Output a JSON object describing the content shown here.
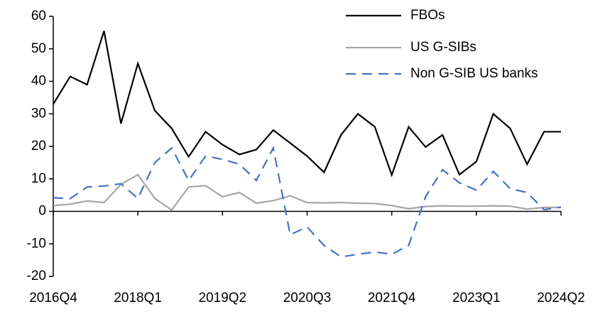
{
  "chart_data": {
    "type": "line",
    "categories": [
      "2016Q4",
      null,
      null,
      null,
      null,
      "2018Q1",
      null,
      null,
      null,
      null,
      "2019Q2",
      null,
      null,
      null,
      null,
      "2020Q3",
      null,
      null,
      null,
      null,
      "2021Q4",
      null,
      null,
      null,
      null,
      "2023Q1",
      null,
      null,
      null,
      null,
      "2024Q2"
    ],
    "series": [
      {
        "name": "FBOs",
        "color": "#000000",
        "dash": false,
        "values": [
          33,
          41.5,
          39,
          55.5,
          27,
          45.5,
          31,
          25.5,
          16.8,
          24.5,
          20.5,
          17.5,
          19,
          25,
          21,
          17,
          12,
          23.5,
          30,
          26,
          11.2,
          26,
          19.8,
          23.5,
          11.3,
          15.3,
          30,
          25.5,
          14.5,
          24.5,
          24.5
        ]
      },
      {
        "name": "US G-SIBs",
        "color": "#a6a6a6",
        "dash": false,
        "values": [
          1.8,
          2.2,
          3.2,
          2.7,
          8.3,
          11.3,
          4,
          0.4,
          7.5,
          7.9,
          4.5,
          5.8,
          2.5,
          3.3,
          4.8,
          2.7,
          2.6,
          2.7,
          2.5,
          2.4,
          1.8,
          0.8,
          1.5,
          1.7,
          1.6,
          1.6,
          1.7,
          1.6,
          0.7,
          1.2,
          1.2
        ]
      },
      {
        "name": "Non G-SIB US banks",
        "color": "#4472c4",
        "dash": true,
        "values": [
          4.2,
          3.9,
          7.5,
          7.8,
          8.5,
          4,
          15,
          19.5,
          9.5,
          17,
          16,
          14.5,
          9.5,
          19.5,
          -7.2,
          -4.8,
          -10.5,
          -14,
          -13.2,
          -12.5,
          -13.2,
          -10.5,
          4.5,
          12.8,
          8.8,
          6.5,
          12.3,
          7,
          5.8,
          0.5,
          1.3
        ]
      }
    ],
    "ylim": [
      -20,
      60
    ],
    "yticks": [
      -20,
      -10,
      0,
      10,
      20,
      30,
      40,
      50,
      60
    ],
    "grid": false,
    "legend": "top-right"
  }
}
